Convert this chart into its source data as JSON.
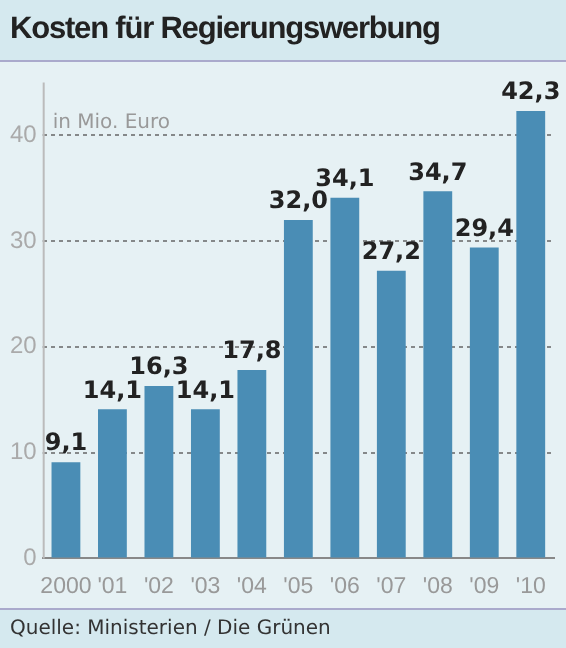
{
  "chart_data": {
    "type": "bar",
    "title": "Kosten für Regierungswerbung",
    "ylabel": "in Mio. Euro",
    "categories": [
      "2000",
      "'01",
      "'02",
      "'03",
      "'04",
      "'05",
      "'06",
      "'07",
      "'08",
      "'09",
      "'10"
    ],
    "values": [
      9.1,
      14.1,
      16.3,
      14.1,
      17.8,
      32.0,
      34.1,
      27.2,
      34.7,
      29.4,
      42.3
    ],
    "value_labels": [
      "9,1",
      "14,1",
      "16,3",
      "14,1",
      "17,8",
      "32,0",
      "34,1",
      "27,2",
      "34,7",
      "29,4",
      "42,3"
    ],
    "color": "#4a8db5",
    "ylim": [
      0,
      45
    ],
    "yticks": [
      0,
      10,
      20,
      30,
      40
    ],
    "grid": "y",
    "annotations": [
      "Quelle: Ministerien / Die Grünen"
    ]
  }
}
